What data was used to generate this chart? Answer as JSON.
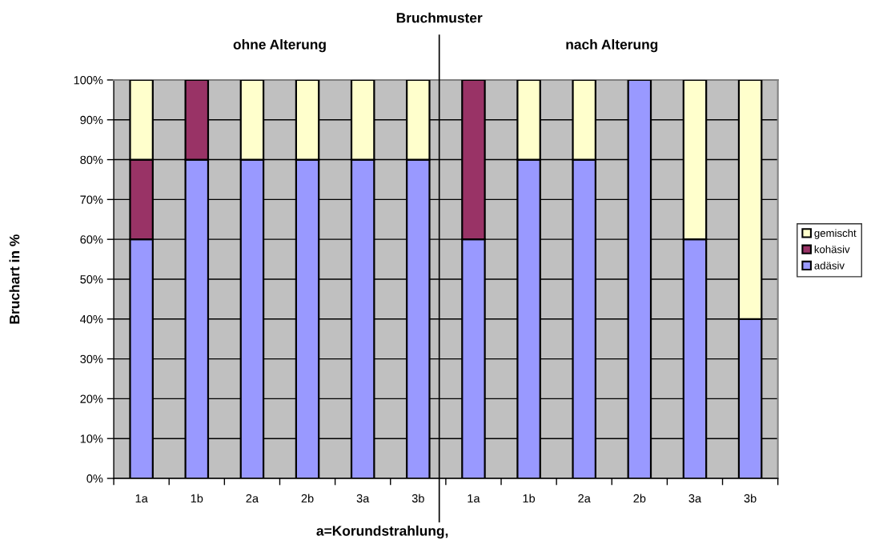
{
  "chart_data": {
    "type": "bar",
    "title": "Bruchmuster",
    "ylabel": "Bruchart in %",
    "categories": [
      "1a",
      "1b",
      "2a",
      "2b",
      "3a",
      "3b",
      "1a",
      "1b",
      "2a",
      "2b",
      "3a",
      "3b"
    ],
    "series": [
      {
        "name": "adäsiv",
        "color": "#9999ff",
        "values": [
          60,
          80,
          80,
          80,
          80,
          80,
          60,
          80,
          80,
          100,
          60,
          40
        ]
      },
      {
        "name": "kohäsiv",
        "color": "#993366",
        "values": [
          20,
          20,
          0,
          0,
          0,
          0,
          40,
          0,
          0,
          0,
          0,
          0
        ]
      },
      {
        "name": "gemischt",
        "color": "#ffffcc",
        "values": [
          20,
          0,
          20,
          20,
          20,
          20,
          0,
          20,
          20,
          0,
          40,
          60
        ]
      }
    ],
    "stacked": true,
    "ylim": [
      0,
      100
    ],
    "yticks": [
      {
        "value": 0,
        "label": "0%"
      },
      {
        "value": 10,
        "label": "10%"
      },
      {
        "value": 20,
        "label": "20%"
      },
      {
        "value": 30,
        "label": "30%"
      },
      {
        "value": 40,
        "label": "40%"
      },
      {
        "value": 50,
        "label": "50%"
      },
      {
        "value": 60,
        "label": "60%"
      },
      {
        "value": 70,
        "label": "70%"
      },
      {
        "value": 80,
        "label": "80%"
      },
      {
        "value": 90,
        "label": "90%"
      },
      {
        "value": 100,
        "label": "100%"
      }
    ],
    "grid": "y",
    "legend": "right",
    "annotations": [
      "ohne Alterung",
      "nach Alterung",
      "a=Korundstrahlung,"
    ]
  }
}
